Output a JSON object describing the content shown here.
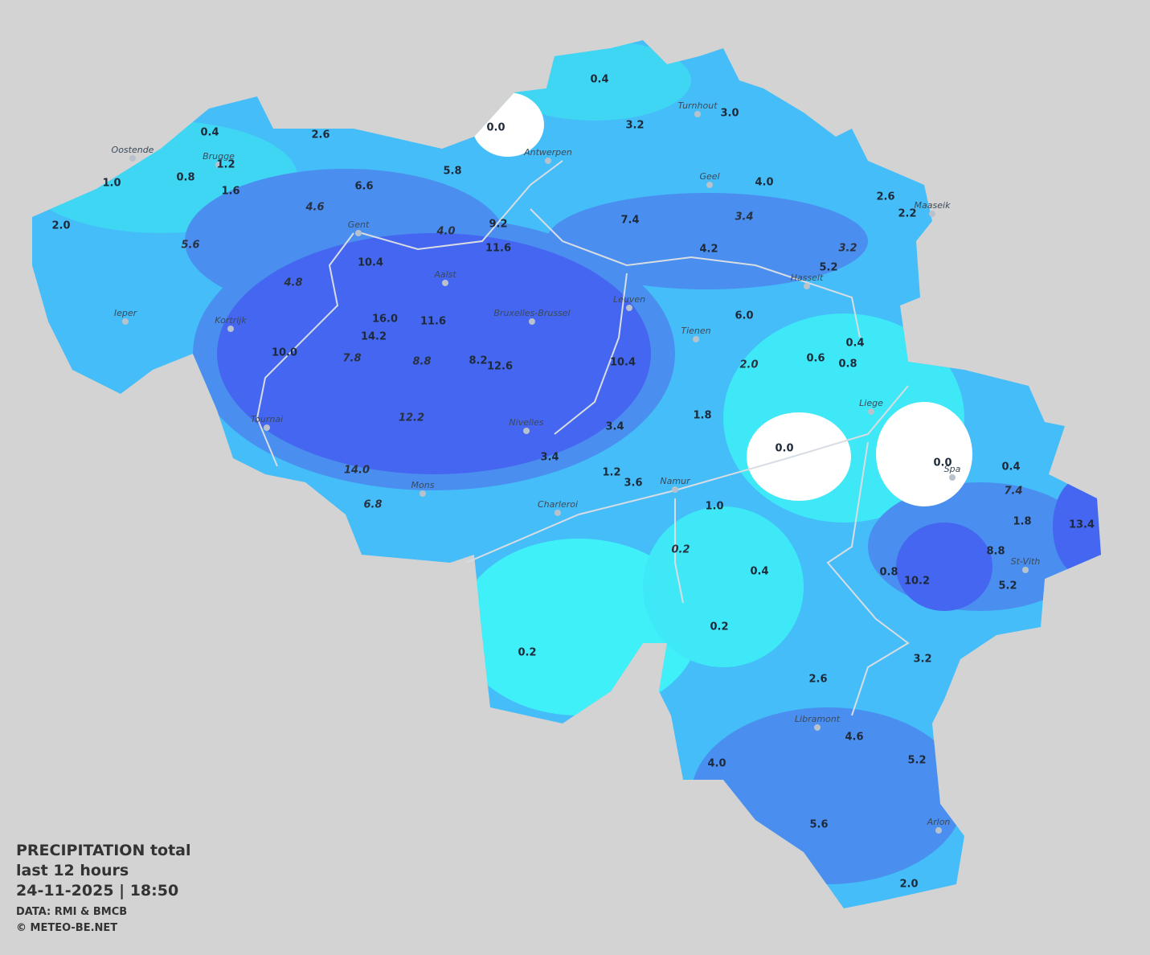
{
  "title": {
    "line1": "PRECIPITATION total",
    "line2": "last 12 hours",
    "line3": "24-11-2025  |  18:50",
    "source": "DATA: RMI & BMCB",
    "copyright": "© METEO-BE.NET"
  },
  "cities": [
    "Oostende",
    "Brugge",
    "Antwerpen",
    "Turnhout",
    "Geel",
    "Maaseik",
    "Gent",
    "Aalst",
    "Hasselt",
    "Ieper",
    "Kortrijk",
    "Bruxelles-Brussel",
    "Leuven",
    "Tienen",
    "Liege",
    "Tournai",
    "Nivelles",
    "Namur",
    "Spa",
    "Mons",
    "Charleroi",
    "St-Vith",
    "Libramont",
    "Arlon"
  ],
  "values": [
    "0.4",
    "3.0",
    "3.2",
    "0.0",
    "0.4",
    "2.6",
    "1.2",
    "5.8",
    "0.8",
    "1.0",
    "4.0",
    "6.6",
    "1.6",
    "2.6",
    "2.2",
    "7.4",
    "9.2",
    "2.0",
    "11.6",
    "4.2",
    "10.4",
    "5.2",
    "6.0",
    "16.0",
    "11.6",
    "14.2",
    "0.4",
    "10.0",
    "0.6",
    "8.2",
    "12.6",
    "10.4",
    "0.8",
    "1.8",
    "3.4",
    "0.0",
    "3.4",
    "0.0",
    "0.4",
    "1.2",
    "3.6",
    "1.0",
    "1.8",
    "13.4",
    "8.8",
    "0.4",
    "0.8",
    "10.2",
    "5.2",
    "0.2",
    "0.2",
    "3.2",
    "2.6",
    "4.6",
    "4.0",
    "5.2",
    "5.6",
    "2.0"
  ],
  "italic_values": [
    "4.6",
    "3.4",
    "4.0",
    "5.6",
    "3.2",
    "4.8",
    "7.8",
    "8.8",
    "2.0",
    "12.2",
    "14.0",
    "7.4",
    "6.8",
    "0.2"
  ]
}
